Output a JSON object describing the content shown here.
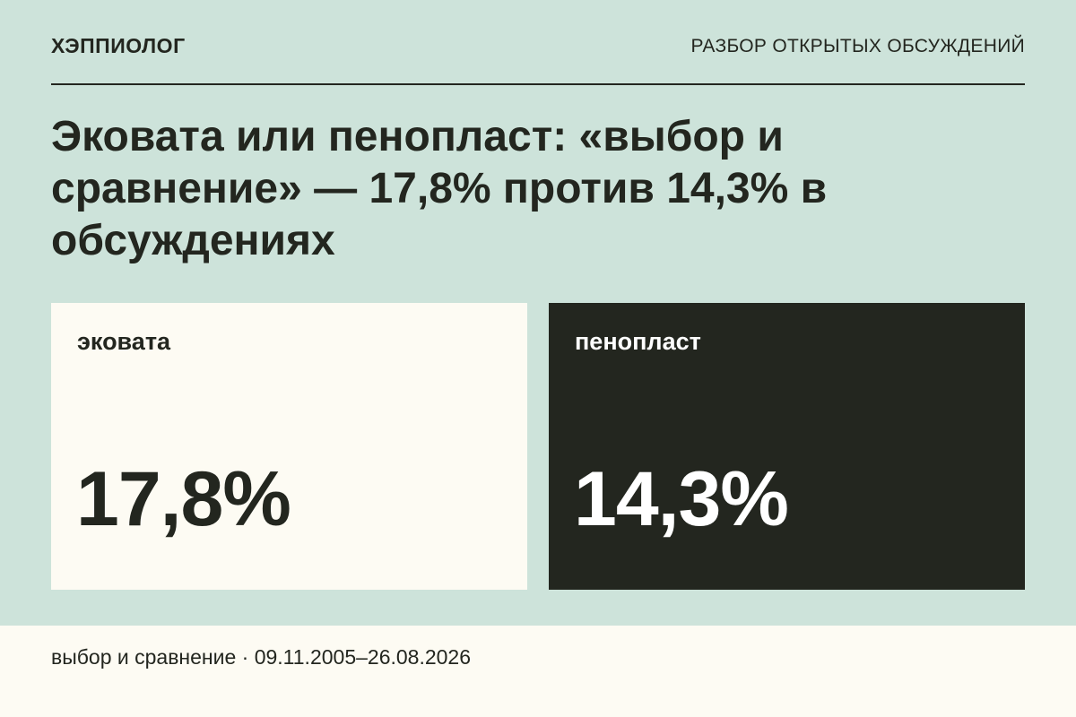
{
  "header": {
    "brand": "ХЭППИОЛОГ",
    "section": "РАЗБОР ОТКРЫТЫХ ОБСУЖДЕНИЙ"
  },
  "title": "Эковата или пенопласт: «выбор и сравнение» — 17,8% против 14,3% в обсуждениях",
  "cards": [
    {
      "label": "эковата",
      "value": "17,8%"
    },
    {
      "label": "пенопласт",
      "value": "14,3%"
    }
  ],
  "footer": {
    "text": "выбор и сравнение · 09.11.2005–26.08.2026"
  }
}
